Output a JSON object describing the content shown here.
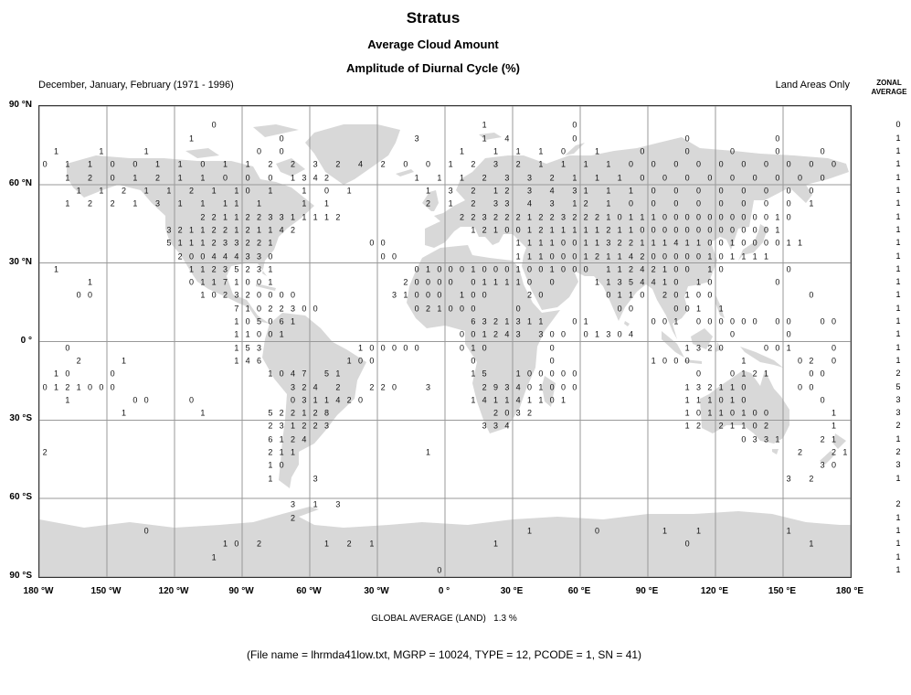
{
  "header": {
    "title": "Stratus",
    "subtitle1": "Average Cloud Amount",
    "subtitle2": "Amplitude of Diurnal Cycle (%)",
    "period": "December, January, February (1971 - 1996)",
    "coverage": "Land Areas Only"
  },
  "footer": {
    "global_average": "GLOBAL AVERAGE (LAND)   1.3 %",
    "file_info": "(File name = lhrmda41low.txt, MGRP = 10024, TYPE = 12, PCODE = 1, SN = 41)"
  },
  "chart_data": {
    "type": "heatmap",
    "title": "Stratus - Average Cloud Amount - Amplitude of Diurnal Cycle (%)",
    "units": "%",
    "xlim": [
      -180,
      180
    ],
    "ylim": [
      -90,
      90
    ],
    "grid_interval_deg": 30,
    "cell_size_deg": 5,
    "x_ticks": [
      "180 °W",
      "150 °W",
      "120 °W",
      "90 °W",
      "60 °W",
      "30 °W",
      "0 °",
      "30 °E",
      "60 °E",
      "90 °E",
      "120 °E",
      "150 °E",
      "180 °E"
    ],
    "y_ticks": [
      {
        "lat": 90,
        "label": "90 °N"
      },
      {
        "lat": 60,
        "label": "60 °N"
      },
      {
        "lat": 30,
        "label": "30 °N"
      },
      {
        "lat": 0,
        "label": "0 °"
      },
      {
        "lat": -30,
        "label": "30 °S"
      },
      {
        "lat": -60,
        "label": "60 °S"
      },
      {
        "lat": -90,
        "label": "90 °S"
      }
    ],
    "zonal": {
      "label1": "ZONAL",
      "label2": "AVERAGE",
      "values": [
        {
          "lat": 82.5,
          "v": "0"
        },
        {
          "lat": 77.5,
          "v": "1"
        },
        {
          "lat": 72.5,
          "v": "1"
        },
        {
          "lat": 67.5,
          "v": "1"
        },
        {
          "lat": 62.5,
          "v": "1"
        },
        {
          "lat": 57.5,
          "v": "1"
        },
        {
          "lat": 52.5,
          "v": "1"
        },
        {
          "lat": 47.5,
          "v": "1"
        },
        {
          "lat": 42.5,
          "v": "1"
        },
        {
          "lat": 37.5,
          "v": "1"
        },
        {
          "lat": 32.5,
          "v": "1"
        },
        {
          "lat": 27.5,
          "v": "1"
        },
        {
          "lat": 22.5,
          "v": "1"
        },
        {
          "lat": 17.5,
          "v": "1"
        },
        {
          "lat": 12.5,
          "v": "1"
        },
        {
          "lat": 7.5,
          "v": "1"
        },
        {
          "lat": 2.5,
          "v": "1"
        },
        {
          "lat": -2.5,
          "v": "1"
        },
        {
          "lat": -7.5,
          "v": "1"
        },
        {
          "lat": -12.5,
          "v": "2"
        },
        {
          "lat": -17.5,
          "v": "5"
        },
        {
          "lat": -22.5,
          "v": "3"
        },
        {
          "lat": -27.5,
          "v": "3"
        },
        {
          "lat": -32.5,
          "v": "2"
        },
        {
          "lat": -37.5,
          "v": "1"
        },
        {
          "lat": -42.5,
          "v": "2"
        },
        {
          "lat": -47.5,
          "v": "3"
        },
        {
          "lat": -52.5,
          "v": "1"
        },
        {
          "lat": -62.5,
          "v": "2"
        },
        {
          "lat": -67.5,
          "v": "1"
        },
        {
          "lat": -72.5,
          "v": "1"
        },
        {
          "lat": -77.5,
          "v": "1"
        },
        {
          "lat": -82.5,
          "v": "1"
        },
        {
          "lat": -87.5,
          "v": "1"
        }
      ]
    },
    "grid_values": [
      {
        "lat": 82.5,
        "segs": [
          [
            -102.5,
            "0"
          ],
          [
            17.5,
            "1"
          ],
          [
            57.5,
            "0"
          ]
        ]
      },
      {
        "lat": 77.5,
        "segs": [
          [
            -112.5,
            "1"
          ],
          [
            -72.5,
            "0"
          ],
          [
            -12.5,
            "3"
          ],
          [
            17.5,
            "1"
          ],
          [
            27.5,
            "4"
          ],
          [
            57.5,
            "0"
          ],
          [
            107.5,
            "0"
          ],
          [
            147.5,
            "0"
          ]
        ]
      },
      {
        "lat": 72.5,
        "segs": [
          [
            -172.5,
            "1"
          ],
          [
            -152.5,
            "1"
          ],
          [
            -132.5,
            "1"
          ],
          [
            -82.5,
            "0 0"
          ],
          [
            7.5,
            "1"
          ],
          [
            22.5,
            "1 1"
          ],
          [
            42.5,
            "1 0"
          ],
          [
            67.5,
            "1"
          ],
          [
            87.5,
            "0"
          ],
          [
            107.5,
            "0"
          ],
          [
            127.5,
            "0"
          ],
          [
            147.5,
            "0"
          ],
          [
            167.5,
            "0"
          ]
        ]
      },
      {
        "lat": 67.5,
        "segs": [
          [
            -177.5,
            "0 1"
          ],
          [
            -157.5,
            "1 0 0"
          ],
          [
            -127.5,
            "1 1 0"
          ],
          [
            -97.5,
            "1 1 2 2"
          ],
          [
            -57.5,
            "3 2 4 2"
          ],
          [
            -17.5,
            "0 0"
          ],
          [
            2.5,
            "1 2 3 2"
          ],
          [
            42.5,
            "1 1 1 1 0 0 0 0 0 0 0 0 0 0"
          ]
        ]
      },
      {
        "lat": 62.5,
        "segs": [
          [
            -167.5,
            "1 2 0 1 2 1 1 0 0 0 1"
          ],
          [
            -62.5,
            "342"
          ],
          [
            -12.5,
            "1 1 1 2 3 3 2 1 1 1"
          ],
          [
            87.5,
            "0 0 0 0 0 0 0 0 0"
          ]
        ]
      },
      {
        "lat": 57.5,
        "segs": [
          [
            -162.5,
            "1 1 2 1 1 2 1 1"
          ],
          [
            -87.5,
            "0 1"
          ],
          [
            -62.5,
            "1 0 1"
          ],
          [
            -7.5,
            "1 3 2 1"
          ],
          [
            27.5,
            "2 3 4 3"
          ],
          [
            62.5,
            "1 1 1 0 0 0 0 0 0 0 0"
          ]
        ]
      },
      {
        "lat": 52.5,
        "segs": [
          [
            -167.5,
            "1 2 2 1 3 1 1 1"
          ],
          [
            -92.5,
            "1 1"
          ],
          [
            -62.5,
            "1 1"
          ],
          [
            -7.5,
            "2 1 2 3"
          ],
          [
            27.5,
            "3 4 3 1"
          ],
          [
            62.5,
            "2 1 0 0 0 0 0 0 0 0 1"
          ]
        ]
      },
      {
        "lat": 47.5,
        "segs": [
          [
            -107.5,
            "2211223311112"
          ],
          [
            7.5,
            "223222122322210111000000000010"
          ]
        ]
      },
      {
        "lat": 42.5,
        "segs": [
          [
            -122.5,
            "321122121142"
          ],
          [
            12.5,
            "1210012111112110000000000001"
          ]
        ]
      },
      {
        "lat": 37.5,
        "segs": [
          [
            -122.5,
            "5111233221"
          ],
          [
            -32.5,
            "00"
          ],
          [
            32.5,
            "11110011322111411001000011"
          ]
        ]
      },
      {
        "lat": 32.5,
        "segs": [
          [
            -117.5,
            "200444330"
          ],
          [
            -27.5,
            "00"
          ],
          [
            32.5,
            "11100012114200000101111"
          ]
        ]
      },
      {
        "lat": 27.5,
        "segs": [
          [
            -172.5,
            "1"
          ],
          [
            -112.5,
            "1123523"
          ],
          [
            -77.5,
            "1"
          ],
          [
            -12.5,
            "0100010001001000"
          ],
          [
            72.5,
            "11242100"
          ],
          [
            117.5,
            "10"
          ],
          [
            152.5,
            "0"
          ]
        ]
      },
      {
        "lat": 22.5,
        "segs": [
          [
            -157.5,
            "1"
          ],
          [
            -112.5,
            "0117100"
          ],
          [
            -77.5,
            "1"
          ],
          [
            -17.5,
            "20000"
          ],
          [
            12.5,
            "011110"
          ],
          [
            47.5,
            "0"
          ],
          [
            67.5,
            "11354410"
          ],
          [
            112.5,
            "10"
          ],
          [
            147.5,
            "0"
          ]
        ]
      },
      {
        "lat": 17.5,
        "segs": [
          [
            -162.5,
            "00"
          ],
          [
            -107.5,
            "10232"
          ],
          [
            -82.5,
            "0000"
          ],
          [
            -22.5,
            "31000"
          ],
          [
            7.5,
            "100"
          ],
          [
            37.5,
            "20"
          ],
          [
            72.5,
            "0110"
          ],
          [
            97.5,
            "20100"
          ],
          [
            162.5,
            "0"
          ]
        ]
      },
      {
        "lat": 12.5,
        "segs": [
          [
            -92.5,
            "71022300"
          ],
          [
            -12.5,
            "021000"
          ],
          [
            32.5,
            "0"
          ],
          [
            77.5,
            "00"
          ],
          [
            102.5,
            "001"
          ],
          [
            122.5,
            "1"
          ]
        ]
      },
      {
        "lat": 7.5,
        "segs": [
          [
            -92.5,
            "105061"
          ],
          [
            12.5,
            "6321311"
          ],
          [
            57.5,
            "01"
          ],
          [
            92.5,
            "001"
          ],
          [
            112.5,
            "000000"
          ],
          [
            147.5,
            "00"
          ],
          [
            167.5,
            "00"
          ]
        ]
      },
      {
        "lat": 2.5,
        "segs": [
          [
            -92.5,
            "11001"
          ],
          [
            7.5,
            "001243"
          ],
          [
            42.5,
            "300"
          ],
          [
            62.5,
            "01304"
          ],
          [
            127.5,
            "0"
          ],
          [
            152.5,
            "0"
          ]
        ]
      },
      {
        "lat": -2.5,
        "segs": [
          [
            -167.5,
            "0"
          ],
          [
            -92.5,
            "153"
          ],
          [
            -37.5,
            "100000"
          ],
          [
            7.5,
            "010"
          ],
          [
            47.5,
            "0"
          ],
          [
            107.5,
            "1320"
          ],
          [
            142.5,
            "001"
          ],
          [
            172.5,
            "0"
          ]
        ]
      },
      {
        "lat": -7.5,
        "segs": [
          [
            -162.5,
            "2"
          ],
          [
            -142.5,
            "1"
          ],
          [
            -92.5,
            "146"
          ],
          [
            -42.5,
            "100"
          ],
          [
            12.5,
            "0"
          ],
          [
            47.5,
            "0"
          ],
          [
            92.5,
            "1000"
          ],
          [
            132.5,
            "1"
          ],
          [
            157.5,
            "02"
          ],
          [
            172.5,
            "0"
          ]
        ]
      },
      {
        "lat": -12.5,
        "segs": [
          [
            -172.5,
            "10"
          ],
          [
            -147.5,
            "0"
          ],
          [
            -77.5,
            "1047"
          ],
          [
            -52.5,
            "51"
          ],
          [
            12.5,
            "15"
          ],
          [
            32.5,
            "100000"
          ],
          [
            112.5,
            "0"
          ],
          [
            127.5,
            "0121"
          ],
          [
            162.5,
            "00"
          ]
        ]
      },
      {
        "lat": -17.5,
        "segs": [
          [
            -177.5,
            "0121000"
          ],
          [
            -67.5,
            "324"
          ],
          [
            -47.5,
            "2"
          ],
          [
            -32.5,
            "220"
          ],
          [
            -7.5,
            "3"
          ],
          [
            17.5,
            "293401000"
          ],
          [
            107.5,
            "132110"
          ],
          [
            157.5,
            "00"
          ]
        ]
      },
      {
        "lat": -22.5,
        "segs": [
          [
            -167.5,
            "1"
          ],
          [
            -137.5,
            "00"
          ],
          [
            -112.5,
            "0"
          ],
          [
            -67.5,
            "0311420"
          ],
          [
            12.5,
            "141141101"
          ],
          [
            107.5,
            "111010"
          ],
          [
            167.5,
            "0"
          ]
        ]
      },
      {
        "lat": -27.5,
        "segs": [
          [
            -142.5,
            "1"
          ],
          [
            -107.5,
            "1"
          ],
          [
            -77.5,
            "522128"
          ],
          [
            22.5,
            "2032"
          ],
          [
            107.5,
            "10110100"
          ],
          [
            172.5,
            "1"
          ]
        ]
      },
      {
        "lat": -32.5,
        "segs": [
          [
            -77.5,
            "231223"
          ],
          [
            17.5,
            "334"
          ],
          [
            107.5,
            "12"
          ],
          [
            122.5,
            "21102"
          ],
          [
            172.5,
            "1"
          ]
        ]
      },
      {
        "lat": -37.5,
        "segs": [
          [
            -77.5,
            "6124"
          ],
          [
            132.5,
            "0331"
          ],
          [
            167.5,
            "21"
          ]
        ]
      },
      {
        "lat": -42.5,
        "segs": [
          [
            -177.5,
            "2"
          ],
          [
            -77.5,
            "211"
          ],
          [
            -7.5,
            "1"
          ],
          [
            157.5,
            "2"
          ],
          [
            172.5,
            "21"
          ]
        ]
      },
      {
        "lat": -47.5,
        "segs": [
          [
            -77.5,
            "10"
          ],
          [
            167.5,
            "30"
          ]
        ]
      },
      {
        "lat": -52.5,
        "segs": [
          [
            -77.5,
            "1"
          ],
          [
            -57.5,
            "3"
          ],
          [
            152.5,
            "3"
          ],
          [
            162.5,
            "2"
          ]
        ]
      },
      {
        "lat": -62.5,
        "segs": [
          [
            -67.5,
            "3"
          ],
          [
            -57.5,
            "1"
          ],
          [
            -47.5,
            "3"
          ]
        ]
      },
      {
        "lat": -67.5,
        "segs": [
          [
            -67.5,
            "2"
          ]
        ]
      },
      {
        "lat": -72.5,
        "segs": [
          [
            -132.5,
            "0"
          ],
          [
            37.5,
            "1"
          ],
          [
            67.5,
            "0"
          ],
          [
            97.5,
            "1"
          ],
          [
            112.5,
            "1"
          ],
          [
            152.5,
            "1"
          ]
        ]
      },
      {
        "lat": -77.5,
        "segs": [
          [
            -97.5,
            "10"
          ],
          [
            -82.5,
            "2"
          ],
          [
            -52.5,
            "1"
          ],
          [
            -42.5,
            "2"
          ],
          [
            -32.5,
            "1"
          ],
          [
            22.5,
            "1"
          ],
          [
            107.5,
            "0"
          ],
          [
            162.5,
            "1"
          ]
        ]
      },
      {
        "lat": -82.5,
        "segs": [
          [
            -102.5,
            "1"
          ]
        ]
      },
      {
        "lat": -87.5,
        "segs": [
          [
            -2.5,
            "0"
          ]
        ]
      }
    ]
  }
}
